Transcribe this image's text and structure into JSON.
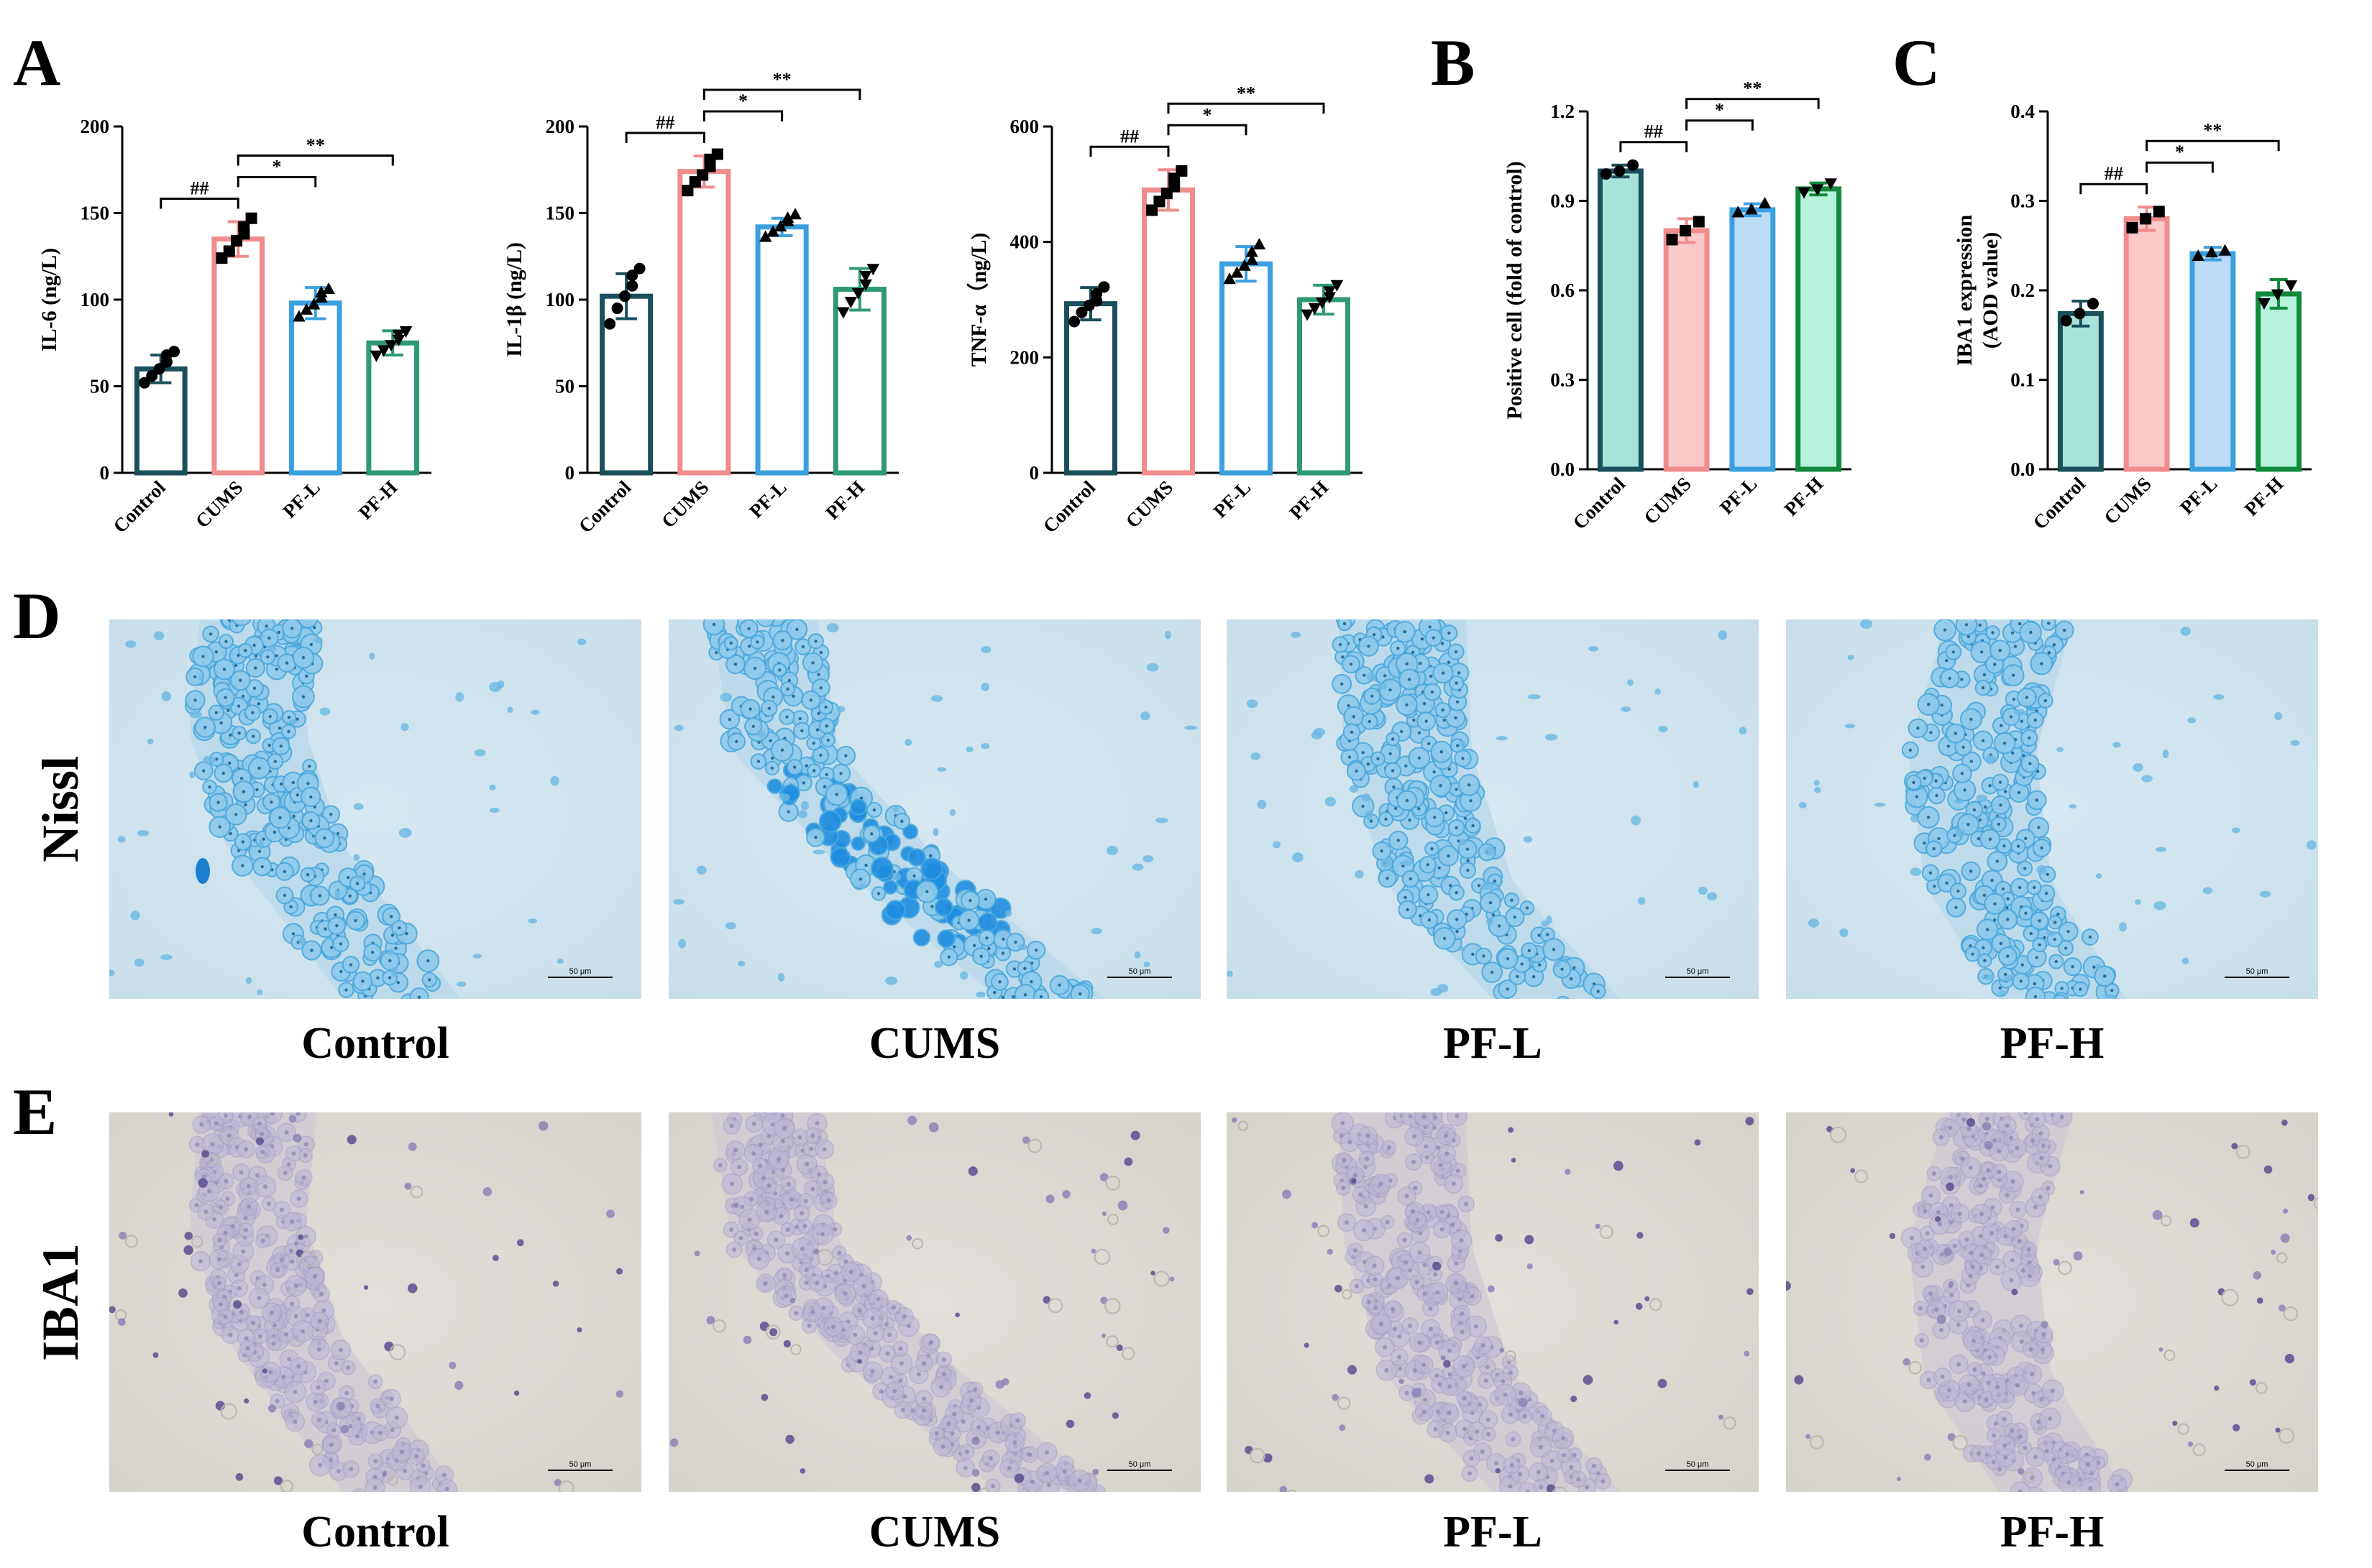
{
  "panel_labels": [
    "A",
    "B",
    "C",
    "D",
    "E"
  ],
  "colors": {
    "control": "#1b4f5c",
    "cums": "#f08c8c",
    "pfl": "#3aa0e0",
    "pfh": "#2e9a72",
    "nissl_bg": "#cfe4ee",
    "nissl_cell": "#4aaee0",
    "iba_bg": "#dedbd6",
    "iba_cell": "#a9a4c8"
  },
  "chart_data": [
    {
      "id": "il6",
      "type": "bar",
      "title": "",
      "ylabel": "IL-6 (ng/L)",
      "categories": [
        "Control",
        "CUMS",
        "PF-L",
        "PF-H"
      ],
      "values": [
        60,
        135,
        98,
        75
      ],
      "errors": [
        8,
        10,
        9,
        7
      ],
      "ylim": [
        0,
        200
      ],
      "yticks": [
        0,
        50,
        100,
        150,
        200
      ],
      "points": [
        [
          52,
          56,
          60,
          64,
          68,
          70
        ],
        [
          124,
          128,
          134,
          138,
          142,
          147
        ],
        [
          90,
          94,
          97,
          101,
          104,
          106
        ],
        [
          68,
          71,
          74,
          77,
          80,
          82
        ]
      ],
      "fill": false,
      "significance": [
        {
          "from": 0,
          "to": 1,
          "label": "##"
        },
        {
          "from": 1,
          "to": 2,
          "label": "*"
        },
        {
          "from": 1,
          "to": 3,
          "label": "**"
        }
      ]
    },
    {
      "id": "il1b",
      "type": "bar",
      "title": "",
      "ylabel": "IL-1β (ng/L)",
      "categories": [
        "Control",
        "CUMS",
        "PF-L",
        "PF-H"
      ],
      "values": [
        102,
        174,
        142,
        106
      ],
      "errors": [
        13,
        9,
        5,
        12
      ],
      "ylim": [
        0,
        200
      ],
      "yticks": [
        0,
        50,
        100,
        150,
        200
      ],
      "points": [
        [
          86,
          95,
          102,
          108,
          114,
          118
        ],
        [
          163,
          168,
          172,
          177,
          181,
          184
        ],
        [
          136,
          139,
          142,
          145,
          147,
          149
        ],
        [
          93,
          99,
          104,
          109,
          114,
          118
        ]
      ],
      "fill": false,
      "significance": [
        {
          "from": 0,
          "to": 1,
          "label": "##"
        },
        {
          "from": 1,
          "to": 2,
          "label": "*"
        },
        {
          "from": 1,
          "to": 3,
          "label": "**"
        }
      ]
    },
    {
      "id": "tnfa",
      "type": "bar",
      "title": "",
      "ylabel": "TNF-α（ng/L)",
      "categories": [
        "Control",
        "CUMS",
        "PF-L",
        "PF-H"
      ],
      "values": [
        293,
        490,
        362,
        300
      ],
      "errors": [
        28,
        35,
        30,
        25
      ],
      "ylim": [
        0,
        600
      ],
      "yticks": [
        0,
        200,
        400,
        600
      ],
      "points": [
        [
          262,
          278,
          290,
          298,
          310,
          322
        ],
        [
          455,
          470,
          484,
          496,
          510,
          523
        ],
        [
          335,
          346,
          358,
          368,
          382,
          395
        ],
        [
          275,
          286,
          296,
          305,
          315,
          326
        ]
      ],
      "fill": false,
      "significance": [
        {
          "from": 0,
          "to": 1,
          "label": "##"
        },
        {
          "from": 1,
          "to": 2,
          "label": "*"
        },
        {
          "from": 1,
          "to": 3,
          "label": "**"
        }
      ]
    },
    {
      "id": "positive_cell",
      "type": "bar",
      "title": "",
      "ylabel": "Positive cell (fold of control)",
      "categories": [
        "Control",
        "CUMS",
        "PF-L",
        "PF-H"
      ],
      "values": [
        1.0,
        0.8,
        0.87,
        0.94
      ],
      "errors": [
        0.02,
        0.04,
        0.02,
        0.02
      ],
      "ylim": [
        0,
        1.2
      ],
      "yticks": [
        0.0,
        0.3,
        0.6,
        0.9,
        1.2
      ],
      "ytick_labels": [
        "0.0",
        "0.3",
        "0.6",
        "0.9",
        "1.2"
      ],
      "points": [
        [
          0.99,
          1.0,
          1.02
        ],
        [
          0.77,
          0.8,
          0.83
        ],
        [
          0.86,
          0.87,
          0.89
        ],
        [
          0.93,
          0.94,
          0.96
        ]
      ],
      "fill": true,
      "significance": [
        {
          "from": 0,
          "to": 1,
          "label": "##"
        },
        {
          "from": 1,
          "to": 2,
          "label": "*"
        },
        {
          "from": 1,
          "to": 3,
          "label": "**"
        }
      ]
    },
    {
      "id": "iba1_aod",
      "type": "bar",
      "title": "",
      "ylabel": "IBA1 expression",
      "ylabel2": "(AOD value)",
      "categories": [
        "Control",
        "CUMS",
        "PF-L",
        "PF-H"
      ],
      "values": [
        0.174,
        0.28,
        0.241,
        0.196
      ],
      "errors": [
        0.014,
        0.013,
        0.007,
        0.016
      ],
      "ylim": [
        0,
        0.4
      ],
      "yticks": [
        0.0,
        0.1,
        0.2,
        0.3,
        0.4
      ],
      "ytick_labels": [
        "0.0",
        "0.1",
        "0.2",
        "0.3",
        "0.4"
      ],
      "points": [
        [
          0.166,
          0.174,
          0.185
        ],
        [
          0.27,
          0.28,
          0.288
        ],
        [
          0.238,
          0.242,
          0.244
        ],
        [
          0.186,
          0.196,
          0.206
        ]
      ],
      "fill": true,
      "significance": [
        {
          "from": 0,
          "to": 1,
          "label": "##"
        },
        {
          "from": 1,
          "to": 2,
          "label": "*"
        },
        {
          "from": 1,
          "to": 3,
          "label": "**"
        }
      ]
    }
  ],
  "micrographs": {
    "nissl_row_label": "Nissl",
    "iba1_row_label": "IBA1",
    "conditions": [
      "Control",
      "CUMS",
      "PF-L",
      "PF-H"
    ],
    "scale_bar_label": "50 μm"
  }
}
